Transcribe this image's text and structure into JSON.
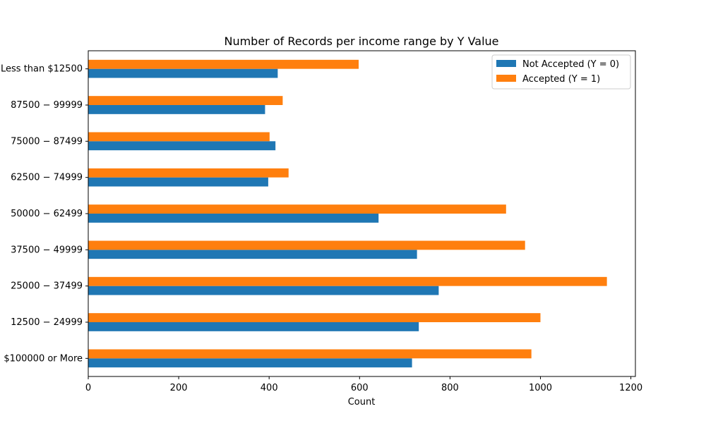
{
  "chart_data": {
    "type": "bar",
    "orientation": "horizontal",
    "title": "Number of Records per income range by Y Value",
    "xlabel": "Count",
    "ylabel": "",
    "xlim": [
      0,
      1210
    ],
    "xticks": [
      0,
      200,
      400,
      600,
      800,
      1000,
      1200
    ],
    "categories": [
      "$100000 or More",
      "$12500 - $24999",
      "$25000 - $37499",
      "$37500 - $49999",
      "$50000 - $62499",
      "$62500 - $74999",
      "$75000 - $87499",
      "$87500 - $99999",
      "Less than $12500"
    ],
    "category_display": [
      "$100000 or More",
      "12500 − 24999",
      "25000 − 37499",
      "37500 − 49999",
      "50000 − 62499",
      "62500 − 74999",
      "75000 − 87499",
      "87500 − 99999",
      "Less than $12500"
    ],
    "series": [
      {
        "name": "Not Accepted (Y = 0)",
        "color": "#1f77b4",
        "values": [
          716,
          731,
          775,
          727,
          642,
          398,
          414,
          391,
          419
        ]
      },
      {
        "name": "Accepted (Y = 1)",
        "color": "#ff7f0e",
        "values": [
          980,
          1000,
          1147,
          966,
          924,
          443,
          401,
          430,
          598
        ]
      }
    ],
    "grid": false,
    "legend_position": "top-right"
  }
}
